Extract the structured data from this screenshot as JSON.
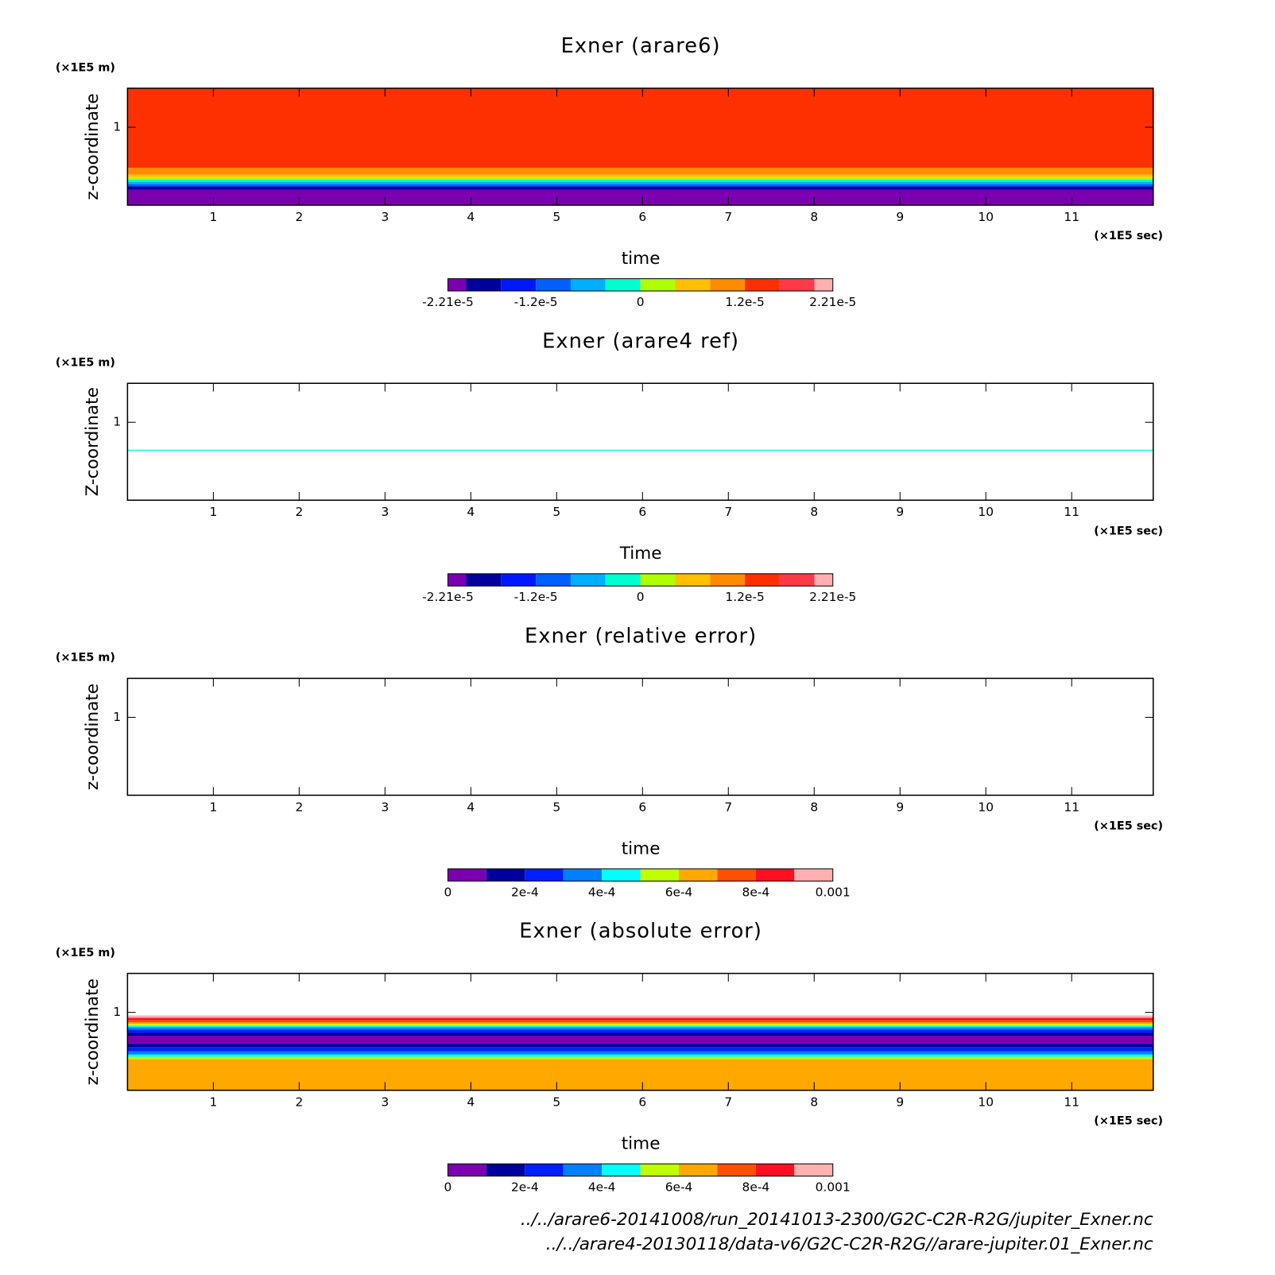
{
  "chart_data": [
    {
      "type": "contour",
      "title": "Exner (arare6)",
      "xlabel": "time",
      "ylabel": "z-coordinate",
      "xunit": "(×1E5 sec)",
      "yunit": "(×1E5 m)",
      "xlim": [
        0,
        11.95
      ],
      "xticks": [
        1,
        2,
        3,
        4,
        5,
        6,
        7,
        8,
        9,
        10,
        11
      ],
      "ylim": [
        0,
        1.5
      ],
      "yticks": [
        1
      ],
      "bands": [
        {
          "z0": 0.48,
          "z1": 1.5,
          "value": 1.4e-05
        },
        {
          "z0": 0.39,
          "z1": 0.48,
          "value": 1e-05
        },
        {
          "z0": 0.36,
          "z1": 0.39,
          "value": 6e-06
        },
        {
          "z0": 0.33,
          "z1": 0.36,
          "value": 2e-06
        },
        {
          "z0": 0.3,
          "z1": 0.33,
          "value": -2e-06
        },
        {
          "z0": 0.27,
          "z1": 0.3,
          "value": -6e-06
        },
        {
          "z0": 0.24,
          "z1": 0.27,
          "value": -1e-05
        },
        {
          "z0": 0.2,
          "z1": 0.24,
          "value": -1.8e-05
        },
        {
          "z0": 0,
          "z1": 0.2,
          "value": -2.1e-05
        }
      ],
      "colorbar": {
        "lim": [
          -2.21e-05,
          2.21e-05
        ],
        "levels": [
          -2e-05,
          -1.6e-05,
          -1.2e-05,
          -8e-06,
          -4e-06,
          0,
          4e-06,
          8e-06,
          1.2e-05,
          1.6e-05,
          2e-05
        ],
        "colors": [
          "#7a00b0",
          "#00009c",
          "#0018ff",
          "#0060ff",
          "#00b0ff",
          "#00ffd0",
          "#b0ff00",
          "#ffc000",
          "#ff8c00",
          "#ff3000",
          "#ff3a48",
          "#ffb0b0"
        ],
        "ticks": [
          {
            "value": -2.21e-05,
            "label": "-2.21e-5"
          },
          {
            "value": -1.2e-05,
            "label": "-1.2e-5"
          },
          0,
          {
            "value": 1.2e-05,
            "label": "1.2e-5"
          },
          {
            "value": 2.21e-05,
            "label": "2.21e-5"
          }
        ]
      }
    },
    {
      "type": "contour",
      "title": "Exner (arare4 ref)",
      "xlabel": "Time",
      "ylabel": "Z-coordinate",
      "xunit": "(×1E5 sec)",
      "yunit": "(×1E5 m)",
      "xlim": [
        0,
        11.95
      ],
      "xticks": [
        1,
        2,
        3,
        4,
        5,
        6,
        7,
        8,
        9,
        10,
        11
      ],
      "ylim": [
        0,
        1.5
      ],
      "yticks": [
        1
      ],
      "bands": [
        {
          "z0": 0.635,
          "z1": 0.648,
          "value": -2e-06
        }
      ],
      "colorbar": {
        "lim": [
          -2.21e-05,
          2.21e-05
        ],
        "levels": [
          -2e-05,
          -1.6e-05,
          -1.2e-05,
          -8e-06,
          -4e-06,
          0,
          4e-06,
          8e-06,
          1.2e-05,
          1.6e-05,
          2e-05
        ],
        "colors": [
          "#7a00b0",
          "#00009c",
          "#0018ff",
          "#0060ff",
          "#00b0ff",
          "#00ffd0",
          "#b0ff00",
          "#ffc000",
          "#ff8c00",
          "#ff3000",
          "#ff3a48",
          "#ffb0b0"
        ],
        "ticks": [
          {
            "value": -2.21e-05,
            "label": "-2.21e-5"
          },
          {
            "value": -1.2e-05,
            "label": "-1.2e-5"
          },
          0,
          {
            "value": 1.2e-05,
            "label": "1.2e-5"
          },
          {
            "value": 2.21e-05,
            "label": "2.21e-5"
          }
        ]
      }
    },
    {
      "type": "contour",
      "title": "Exner (relative error)",
      "xlabel": "time",
      "ylabel": "z-coordinate",
      "xunit": "(×1E5 sec)",
      "yunit": "(×1E5 m)",
      "xlim": [
        0,
        11.95
      ],
      "xticks": [
        1,
        2,
        3,
        4,
        5,
        6,
        7,
        8,
        9,
        10,
        11
      ],
      "ylim": [
        0,
        1.5
      ],
      "yticks": [
        1
      ],
      "bands": [],
      "colorbar": {
        "lim": [
          0,
          0.001
        ],
        "levels": [
          0.0001,
          0.0002,
          0.0003,
          0.0004,
          0.0005,
          0.0006,
          0.0007,
          0.0008,
          0.0009
        ],
        "colors": [
          "#7a00b0",
          "#00009c",
          "#0020ff",
          "#0080ff",
          "#00ffff",
          "#c0ff00",
          "#ffa800",
          "#ff5000",
          "#ff1020",
          "#ffb0b0"
        ],
        "ticks": [
          0,
          {
            "value": 0.0002,
            "label": "2e-4"
          },
          {
            "value": 0.0004,
            "label": "4e-4"
          },
          {
            "value": 0.0006,
            "label": "6e-4"
          },
          {
            "value": 0.0008,
            "label": "8e-4"
          },
          0.001
        ]
      }
    },
    {
      "type": "contour",
      "title": "Exner (absolute error)",
      "xlabel": "time",
      "ylabel": "z-coordinate",
      "xunit": "(×1E5 sec)",
      "yunit": "(×1E5 m)",
      "xlim": [
        0,
        11.95
      ],
      "xticks": [
        1,
        2,
        3,
        4,
        5,
        6,
        7,
        8,
        9,
        10,
        11
      ],
      "ylim": [
        0,
        1.5
      ],
      "yticks": [
        1
      ],
      "bands": [
        {
          "z0": 0.93,
          "z1": 0.96,
          "value": 0.00095
        },
        {
          "z0": 0.9,
          "z1": 0.93,
          "value": 0.00085
        },
        {
          "z0": 0.87,
          "z1": 0.9,
          "value": 0.00075
        },
        {
          "z0": 0.85,
          "z1": 0.87,
          "value": 0.00065
        },
        {
          "z0": 0.83,
          "z1": 0.85,
          "value": 0.00055
        },
        {
          "z0": 0.81,
          "z1": 0.83,
          "value": 0.00045
        },
        {
          "z0": 0.78,
          "z1": 0.81,
          "value": 0.00035
        },
        {
          "z0": 0.74,
          "z1": 0.78,
          "value": 0.00025
        },
        {
          "z0": 0.7,
          "z1": 0.74,
          "value": 0.00015
        },
        {
          "z0": 0.6,
          "z1": 0.7,
          "value": 5e-05
        },
        {
          "z0": 0.55,
          "z1": 0.6,
          "value": 0.00015
        },
        {
          "z0": 0.5,
          "z1": 0.55,
          "value": 0.00025
        },
        {
          "z0": 0.46,
          "z1": 0.5,
          "value": 0.00035
        },
        {
          "z0": 0.43,
          "z1": 0.46,
          "value": 0.00045
        },
        {
          "z0": 0.4,
          "z1": 0.43,
          "value": 0.00055
        },
        {
          "z0": 0,
          "z1": 0.4,
          "value": 0.00065
        }
      ],
      "colorbar": {
        "lim": [
          0,
          0.001
        ],
        "levels": [
          0.0001,
          0.0002,
          0.0003,
          0.0004,
          0.0005,
          0.0006,
          0.0007,
          0.0008,
          0.0009
        ],
        "colors": [
          "#7a00b0",
          "#00009c",
          "#0020ff",
          "#0080ff",
          "#00ffff",
          "#c0ff00",
          "#ffa800",
          "#ff5000",
          "#ff1020",
          "#ffb0b0"
        ],
        "ticks": [
          0,
          {
            "value": 0.0002,
            "label": "2e-4"
          },
          {
            "value": 0.0004,
            "label": "4e-4"
          },
          {
            "value": 0.0006,
            "label": "6e-4"
          },
          {
            "value": 0.0008,
            "label": "8e-4"
          },
          0.001
        ]
      }
    }
  ],
  "footer": [
    "../../arare6-20141008/run_20141013-2300/G2C-C2R-R2G/jupiter_Exner.nc",
    "../../arare4-20130118/data-v6/G2C-C2R-R2G//arare-jupiter.01_Exner.nc"
  ]
}
